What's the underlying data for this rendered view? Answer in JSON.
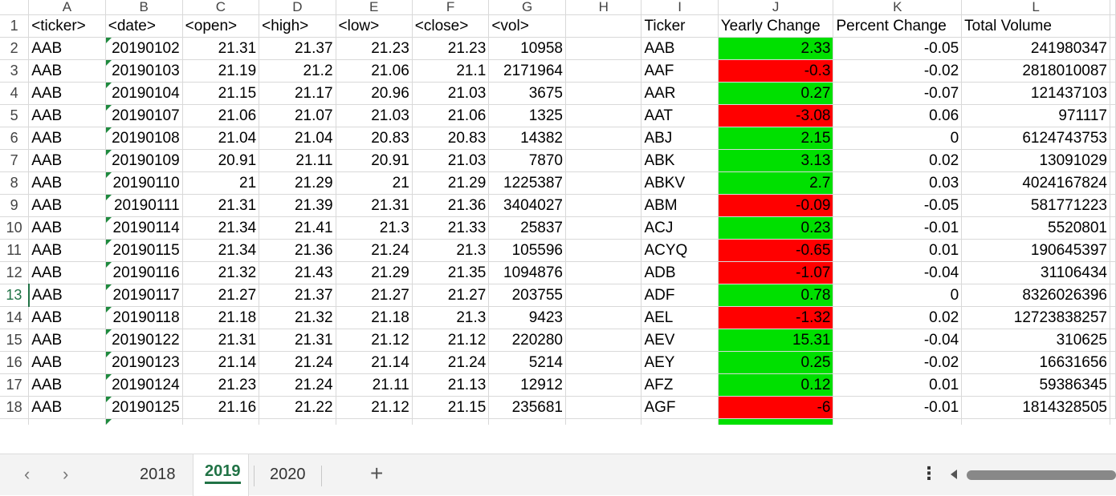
{
  "columns": [
    "A",
    "B",
    "C",
    "D",
    "E",
    "F",
    "G",
    "H",
    "I",
    "J",
    "K",
    "L"
  ],
  "active_row": 13,
  "header_row": [
    "<ticker>",
    "<date>",
    "<open>",
    "<high>",
    "<low>",
    "<close>",
    "<vol>",
    "",
    "Ticker",
    "Yearly Change",
    "Percent Change",
    "Total Volume"
  ],
  "rows": [
    {
      "n": 2,
      "t": "AAB",
      "d": "20190102",
      "o": "21.31",
      "h": "21.37",
      "l": "21.23",
      "c": "21.23",
      "v": "10958",
      "st": "AAB",
      "yc": "2.33",
      "pos": true,
      "pc": "-0.05",
      "tv": "241980347"
    },
    {
      "n": 3,
      "t": "AAB",
      "d": "20190103",
      "o": "21.19",
      "h": "21.2",
      "l": "21.06",
      "c": "21.1",
      "v": "2171964",
      "st": "AAF",
      "yc": "-0.3",
      "pos": false,
      "pc": "-0.02",
      "tv": "2818010087"
    },
    {
      "n": 4,
      "t": "AAB",
      "d": "20190104",
      "o": "21.15",
      "h": "21.17",
      "l": "20.96",
      "c": "21.03",
      "v": "3675",
      "st": "AAR",
      "yc": "0.27",
      "pos": true,
      "pc": "-0.07",
      "tv": "121437103"
    },
    {
      "n": 5,
      "t": "AAB",
      "d": "20190107",
      "o": "21.06",
      "h": "21.07",
      "l": "21.03",
      "c": "21.06",
      "v": "1325",
      "st": "AAT",
      "yc": "-3.08",
      "pos": false,
      "pc": "0.06",
      "tv": "971117"
    },
    {
      "n": 6,
      "t": "AAB",
      "d": "20190108",
      "o": "21.04",
      "h": "21.04",
      "l": "20.83",
      "c": "20.83",
      "v": "14382",
      "st": "ABJ",
      "yc": "2.15",
      "pos": true,
      "pc": "0",
      "tv": "6124743753"
    },
    {
      "n": 7,
      "t": "AAB",
      "d": "20190109",
      "o": "20.91",
      "h": "21.11",
      "l": "20.91",
      "c": "21.03",
      "v": "7870",
      "st": "ABK",
      "yc": "3.13",
      "pos": true,
      "pc": "0.02",
      "tv": "13091029"
    },
    {
      "n": 8,
      "t": "AAB",
      "d": "20190110",
      "o": "21",
      "h": "21.29",
      "l": "21",
      "c": "21.29",
      "v": "1225387",
      "st": "ABKV",
      "yc": "2.7",
      "pos": true,
      "pc": "0.03",
      "tv": "4024167824"
    },
    {
      "n": 9,
      "t": "AAB",
      "d": "20190111",
      "o": "21.31",
      "h": "21.39",
      "l": "21.31",
      "c": "21.36",
      "v": "3404027",
      "st": "ABM",
      "yc": "-0.09",
      "pos": false,
      "pc": "-0.05",
      "tv": "581771223"
    },
    {
      "n": 10,
      "t": "AAB",
      "d": "20190114",
      "o": "21.34",
      "h": "21.41",
      "l": "21.3",
      "c": "21.33",
      "v": "25837",
      "st": "ACJ",
      "yc": "0.23",
      "pos": true,
      "pc": "-0.01",
      "tv": "5520801"
    },
    {
      "n": 11,
      "t": "AAB",
      "d": "20190115",
      "o": "21.34",
      "h": "21.36",
      "l": "21.24",
      "c": "21.3",
      "v": "105596",
      "st": "ACYQ",
      "yc": "-0.65",
      "pos": false,
      "pc": "0.01",
      "tv": "190645397"
    },
    {
      "n": 12,
      "t": "AAB",
      "d": "20190116",
      "o": "21.32",
      "h": "21.43",
      "l": "21.29",
      "c": "21.35",
      "v": "1094876",
      "st": "ADB",
      "yc": "-1.07",
      "pos": false,
      "pc": "-0.04",
      "tv": "31106434"
    },
    {
      "n": 13,
      "t": "AAB",
      "d": "20190117",
      "o": "21.27",
      "h": "21.37",
      "l": "21.27",
      "c": "21.27",
      "v": "203755",
      "st": "ADF",
      "yc": "0.78",
      "pos": true,
      "pc": "0",
      "tv": "8326026396"
    },
    {
      "n": 14,
      "t": "AAB",
      "d": "20190118",
      "o": "21.18",
      "h": "21.32",
      "l": "21.18",
      "c": "21.3",
      "v": "9423",
      "st": "AEL",
      "yc": "-1.32",
      "pos": false,
      "pc": "0.02",
      "tv": "12723838257"
    },
    {
      "n": 15,
      "t": "AAB",
      "d": "20190122",
      "o": "21.31",
      "h": "21.31",
      "l": "21.12",
      "c": "21.12",
      "v": "220280",
      "st": "AEV",
      "yc": "15.31",
      "pos": true,
      "pc": "-0.04",
      "tv": "310625"
    },
    {
      "n": 16,
      "t": "AAB",
      "d": "20190123",
      "o": "21.14",
      "h": "21.24",
      "l": "21.14",
      "c": "21.24",
      "v": "5214",
      "st": "AEY",
      "yc": "0.25",
      "pos": true,
      "pc": "-0.02",
      "tv": "16631656"
    },
    {
      "n": 17,
      "t": "AAB",
      "d": "20190124",
      "o": "21.23",
      "h": "21.24",
      "l": "21.11",
      "c": "21.13",
      "v": "12912",
      "st": "AFZ",
      "yc": "0.12",
      "pos": true,
      "pc": "0.01",
      "tv": "59386345"
    },
    {
      "n": 18,
      "t": "AAB",
      "d": "20190125",
      "o": "21.16",
      "h": "21.22",
      "l": "21.12",
      "c": "21.15",
      "v": "235681",
      "st": "AGF",
      "yc": "-6",
      "pos": false,
      "pc": "-0.01",
      "tv": "1814328505"
    }
  ],
  "tabs": {
    "sheets": [
      "2018",
      "2019",
      "2020"
    ],
    "active": "2019",
    "add_icon": "plus-icon",
    "prev_icon": "chevron-left-icon",
    "next_icon": "chevron-right-icon",
    "more_icon": "vertical-ellipsis-icon"
  },
  "colors": {
    "positive": "#00e000",
    "negative": "#ff0000",
    "accent": "#217346"
  }
}
